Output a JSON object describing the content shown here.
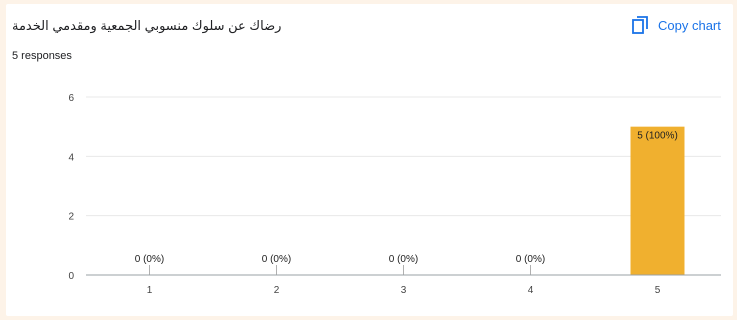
{
  "header": {
    "title": "رضاك عن سلوك منسوبي الجمعية ومقدمي الخدمة",
    "responses": "5 responses",
    "copy_label": "Copy chart"
  },
  "icons": {
    "copy": "copy-icon"
  },
  "colors": {
    "bar": "#f0b02f",
    "accent": "#1a73e8",
    "grid": "#e8e8e8",
    "axis": "#9aa0a6"
  },
  "chart_data": {
    "type": "bar",
    "title": "رضاك عن سلوك منسوبي الجمعية ومقدمي الخدمة",
    "categories": [
      "1",
      "2",
      "3",
      "4",
      "5"
    ],
    "values": [
      0,
      0,
      0,
      0,
      5
    ],
    "data_labels": [
      "0 (0%)",
      "0 (0%)",
      "0 (0%)",
      "0 (0%)",
      "5 (100%)"
    ],
    "yticks": [
      0,
      2,
      4,
      6
    ],
    "ylim": [
      0,
      6
    ],
    "grid": true,
    "xlabel": "",
    "ylabel": ""
  }
}
